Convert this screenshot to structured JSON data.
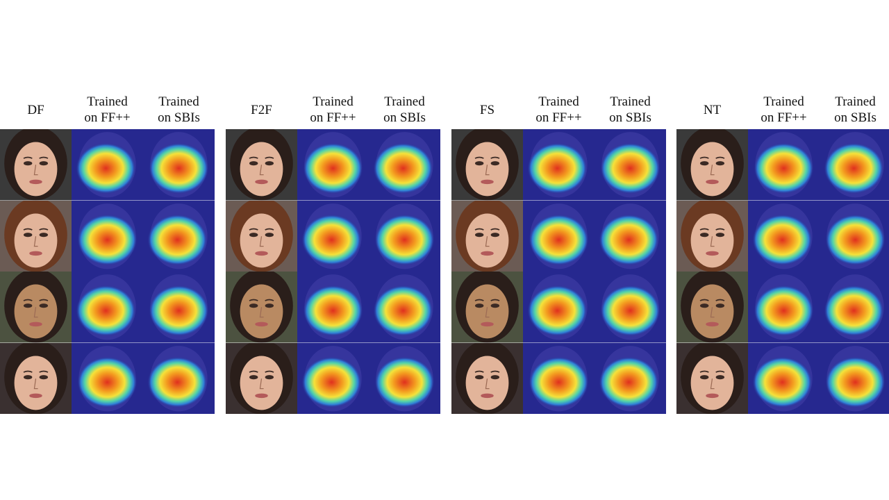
{
  "groups": [
    {
      "method": "DF",
      "col_ffpp": [
        "Trained",
        "on FF++"
      ],
      "col_sbi": [
        "Trained",
        "on SBIs"
      ]
    },
    {
      "method": "F2F",
      "col_ffpp": [
        "Trained",
        "on FF++"
      ],
      "col_sbi": [
        "Trained",
        "on SBIs"
      ]
    },
    {
      "method": "FS",
      "col_ffpp": [
        "Trained",
        "on FF++"
      ],
      "col_sbi": [
        "Trained",
        "on SBIs"
      ]
    },
    {
      "method": "NT",
      "col_ffpp": [
        "Trained",
        "on FF++"
      ],
      "col_sbi": [
        "Trained",
        "on SBIs"
      ]
    }
  ],
  "colors": {
    "heat_bg": "#26288f",
    "hair_dark": "#2a1e1a",
    "hair_brown": "#6b3a22",
    "skin_light": "#e2b49a",
    "skin_tan": "#b98a62"
  }
}
